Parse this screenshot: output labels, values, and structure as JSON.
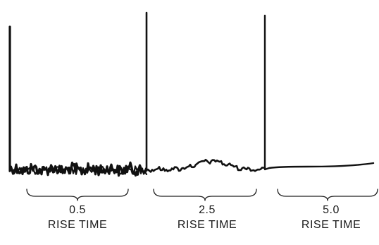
{
  "panels": [
    {
      "value": "0.5",
      "caption": "RISE TIME",
      "noise": "high"
    },
    {
      "value": "2.5",
      "caption": "RISE TIME",
      "noise": "medium"
    },
    {
      "value": "5.0",
      "caption": "RISE TIME",
      "noise": "low"
    }
  ],
  "colors": {
    "trace": "#111111",
    "background": "#ffffff"
  }
}
